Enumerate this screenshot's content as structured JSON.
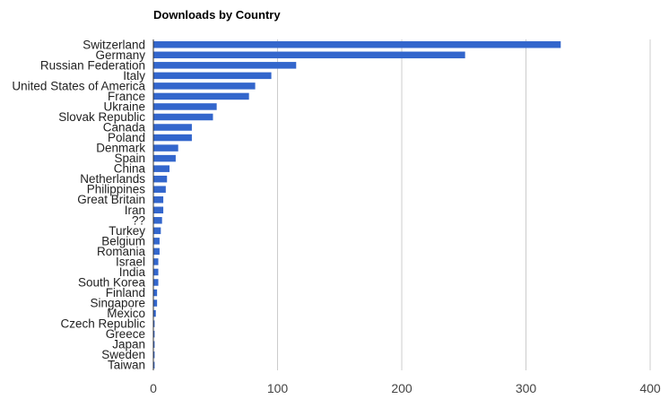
{
  "chart_data": {
    "type": "bar",
    "orientation": "horizontal",
    "title": "Downloads by Country",
    "xlabel": "",
    "ylabel": "",
    "xlim": [
      0,
      400
    ],
    "x_ticks": [
      0,
      100,
      200,
      300,
      400
    ],
    "grid": true,
    "legend": "none",
    "bar_color": "#3366cc",
    "categories": [
      "Switzerland",
      "Germany",
      "Russian Federation",
      "Italy",
      "United States of America",
      "France",
      "Ukraine",
      "Slovak Republic",
      "Canada",
      "Poland",
      "Denmark",
      "Spain",
      "China",
      "Netherlands",
      "Philippines",
      "Great Britain",
      "Iran",
      "??",
      "Turkey",
      "Belgium",
      "Romania",
      "Israel",
      "India",
      "South Korea",
      "Finland",
      "Singapore",
      "Mexico",
      "Czech Republic",
      "Greece",
      "Japan",
      "Sweden",
      "Taiwan"
    ],
    "values": [
      328,
      251,
      115,
      95,
      82,
      77,
      51,
      48,
      31,
      31,
      20,
      18,
      13,
      11,
      10,
      8,
      8,
      7,
      6,
      5,
      5,
      4,
      4,
      4,
      3,
      3,
      2,
      1,
      1,
      1,
      1,
      1
    ]
  }
}
